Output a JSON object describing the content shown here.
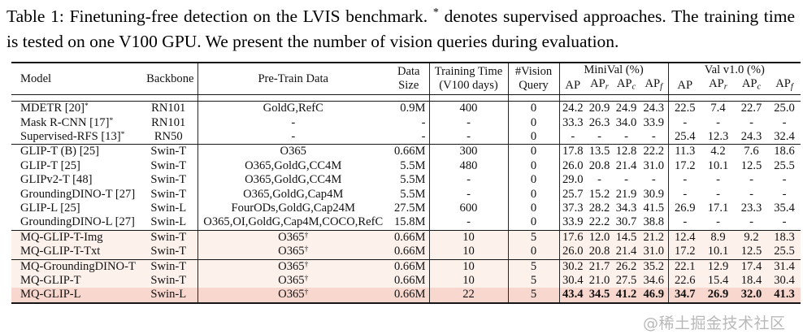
{
  "caption": {
    "part1": "Table 1: Finetuning-free detection on the LVIS benchmark. ",
    "star": "*",
    "part2": " denotes supervised approaches. The training time is tested on one V100 GPU. We present the number of vision queries during evaluation."
  },
  "colors": {
    "row_pink_light": "#fdf1ec",
    "row_pink_dark": "#f8d7cf",
    "rule_color": "#161616"
  },
  "watermark": {
    "text": "@稀土掘金技术社区"
  },
  "table": {
    "headers": {
      "model": "Model",
      "backbone": "Backbone",
      "pretrain": "Pre-Train Data",
      "data_size_line1": "Data",
      "data_size_line2": "Size",
      "training_time_line1": "Training Time",
      "training_time_line2": "(V100 days)",
      "vision_query_line1": "#Vision",
      "vision_query_line2": "Query",
      "minival_group": "MiniVal (%)",
      "val_group": "Val v1.0 (%)",
      "ap_cols": [
        {
          "base": "AP",
          "sub": ""
        },
        {
          "base": "AP",
          "sub": "r"
        },
        {
          "base": "AP",
          "sub": "c"
        },
        {
          "base": "AP",
          "sub": "f"
        }
      ]
    },
    "groups": [
      {
        "name": "supervised",
        "rows": [
          {
            "model": "MDETR [20]*",
            "backbone": "RN101",
            "pretrain": "GoldG,RefC",
            "data_size": "0.9M",
            "training_time": "400",
            "vision_query": "0",
            "minival": [
              "24.2",
              "20.9",
              "24.9",
              "24.3"
            ],
            "val": [
              "22.5",
              "7.4",
              "22.7",
              "25.0"
            ],
            "highlight": "none",
            "bold": false
          },
          {
            "model": "Mask R-CNN [17]*",
            "backbone": "RN101",
            "pretrain": "-",
            "data_size": "-",
            "training_time": "-",
            "vision_query": "0",
            "minival": [
              "33.3",
              "26.3",
              "34.0",
              "33.9"
            ],
            "val": [
              "-",
              "-",
              "-",
              "-"
            ],
            "highlight": "none",
            "bold": false
          },
          {
            "model": "Supervised-RFS [13]*",
            "backbone": "RN50",
            "pretrain": "-",
            "data_size": "-",
            "training_time": "-",
            "vision_query": "0",
            "minival": [
              "-",
              "-",
              "-",
              "-"
            ],
            "val": [
              "25.4",
              "12.3",
              "24.3",
              "32.4"
            ],
            "highlight": "none",
            "bold": false
          }
        ]
      },
      {
        "name": "finetuning-free-baselines",
        "rows": [
          {
            "model": "GLIP-T (B) [25]",
            "backbone": "Swin-T",
            "pretrain": "O365",
            "data_size": "0.66M",
            "training_time": "300",
            "vision_query": "0",
            "minival": [
              "17.8",
              "13.5",
              "12.8",
              "22.2"
            ],
            "val": [
              "11.3",
              "4.2",
              "7.6",
              "18.6"
            ],
            "highlight": "none",
            "bold": false
          },
          {
            "model": "GLIP-T [25]",
            "backbone": "Swin-T",
            "pretrain": "O365,GoldG,CC4M",
            "data_size": "5.5M",
            "training_time": "480",
            "vision_query": "0",
            "minival": [
              "26.0",
              "20.8",
              "21.4",
              "31.0"
            ],
            "val": [
              "17.2",
              "10.1",
              "12.5",
              "25.5"
            ],
            "highlight": "none",
            "bold": false
          },
          {
            "model": "GLIPv2-T [48]",
            "backbone": "Swin-T",
            "pretrain": "O365,GoldG,CC4M",
            "data_size": "5.5M",
            "training_time": "-",
            "vision_query": "0",
            "minival": [
              "29.0",
              "-",
              "-",
              "-"
            ],
            "val": [
              "-",
              "-",
              "-",
              "-"
            ],
            "highlight": "none",
            "bold": false
          },
          {
            "model": "GroundingDINO-T [27]",
            "backbone": "Swin-T",
            "pretrain": "O365,GoldG,Cap4M",
            "data_size": "5.5M",
            "training_time": "-",
            "vision_query": "0",
            "minival": [
              "25.7",
              "15.2",
              "21.9",
              "30.9"
            ],
            "val": [
              "-",
              "-",
              "-",
              "-"
            ],
            "highlight": "none",
            "bold": false
          },
          {
            "model": "GLIP-L [25]",
            "backbone": "Swin-L",
            "pretrain": "FourODs,GoldG,Cap24M",
            "data_size": "27.5M",
            "training_time": "600",
            "vision_query": "0",
            "minival": [
              "37.3",
              "28.2",
              "34.3",
              "41.5"
            ],
            "val": [
              "26.9",
              "17.1",
              "23.3",
              "35.4"
            ],
            "highlight": "none",
            "bold": false
          },
          {
            "model": "GroundingDINO-L [27]",
            "backbone": "Swin-L",
            "pretrain": "O365,OI,GoldG,Cap4M,COCO,RefC",
            "data_size": "15.8M",
            "training_time": "-",
            "vision_query": "0",
            "minival": [
              "33.9",
              "22.2",
              "30.7",
              "38.8"
            ],
            "val": [
              "-",
              "-",
              "-",
              "-"
            ],
            "highlight": "none",
            "bold": false
          }
        ]
      },
      {
        "name": "mq-glip-query-ablation",
        "rows": [
          {
            "model": "MQ-GLIP-T-Img",
            "backbone": "Swin-T",
            "pretrain": "O365†",
            "data_size": "0.66M",
            "training_time": "10",
            "vision_query": "5",
            "minival": [
              "17.6",
              "12.0",
              "14.5",
              "21.2"
            ],
            "val": [
              "12.4",
              "8.9",
              "9.2",
              "18.3"
            ],
            "highlight": "light",
            "bold": false
          },
          {
            "model": "MQ-GLIP-T-Txt",
            "backbone": "Swin-T",
            "pretrain": "O365†",
            "data_size": "0.66M",
            "training_time": "10",
            "vision_query": "0",
            "minival": [
              "26.0",
              "20.8",
              "21.4",
              "31.0"
            ],
            "val": [
              "17.2",
              "10.1",
              "12.5",
              "25.5"
            ],
            "highlight": "light",
            "bold": false
          }
        ]
      },
      {
        "name": "mq-main-results",
        "rows": [
          {
            "model": "MQ-GroundingDINO-T",
            "backbone": "Swin-T",
            "pretrain": "O365†",
            "data_size": "0.66M",
            "training_time": "10",
            "vision_query": "5",
            "minival": [
              "30.2",
              "21.7",
              "26.2",
              "35.2"
            ],
            "val": [
              "22.1",
              "12.9",
              "17.4",
              "31.4"
            ],
            "highlight": "light",
            "bold": false
          },
          {
            "model": "MQ-GLIP-T",
            "backbone": "Swin-T",
            "pretrain": "O365†",
            "data_size": "0.66M",
            "training_time": "10",
            "vision_query": "5",
            "minival": [
              "30.4",
              "21.0",
              "27.5",
              "34.6"
            ],
            "val": [
              "22.6",
              "15.4",
              "18.4",
              "30.4"
            ],
            "highlight": "light",
            "bold": false
          },
          {
            "model": "MQ-GLIP-L",
            "backbone": "Swin-L",
            "pretrain": "O365†",
            "data_size": "0.66M",
            "training_time": "22",
            "vision_query": "5",
            "minival": [
              "43.4",
              "34.5",
              "41.2",
              "46.9"
            ],
            "val": [
              "34.7",
              "26.9",
              "32.0",
              "41.3"
            ],
            "highlight": "dark",
            "bold": true
          }
        ]
      }
    ]
  }
}
